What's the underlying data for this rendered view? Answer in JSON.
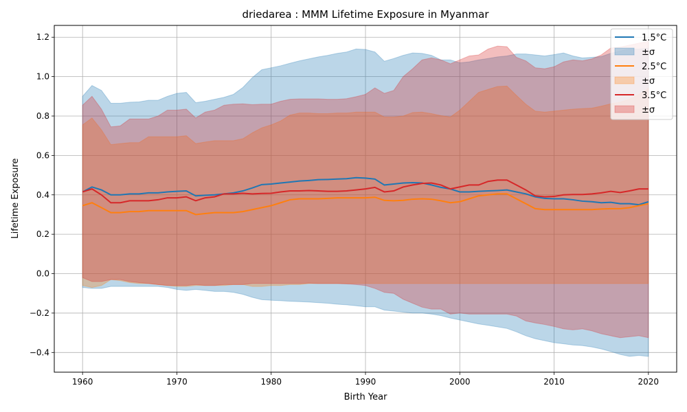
{
  "chart_data": {
    "type": "line",
    "title": "driedarea : MMM Lifetime Exposure in Myanmar",
    "xlabel": "Birth Year",
    "ylabel": "Lifetime Exposure",
    "xlim": [
      1957,
      2023
    ],
    "ylim": [
      -0.5,
      1.26
    ],
    "xticks": [
      1960,
      1970,
      1980,
      1990,
      2000,
      2010,
      2020
    ],
    "yticks": [
      -0.4,
      -0.2,
      0.0,
      0.2,
      0.4,
      0.6,
      0.8,
      1.0,
      1.2
    ],
    "xtick_labels": [
      "1960",
      "1970",
      "1980",
      "1990",
      "2000",
      "2010",
      "2020"
    ],
    "ytick_labels": [
      "−0.4",
      "−0.2",
      "0.0",
      "0.2",
      "0.4",
      "0.6",
      "0.8",
      "1.0",
      "1.2"
    ],
    "grid": true,
    "legend_position": "top-right",
    "x": [
      1960,
      1961,
      1962,
      1963,
      1964,
      1965,
      1966,
      1967,
      1968,
      1969,
      1970,
      1971,
      1972,
      1973,
      1974,
      1975,
      1976,
      1977,
      1978,
      1979,
      1980,
      1981,
      1982,
      1983,
      1984,
      1985,
      1986,
      1987,
      1988,
      1989,
      1990,
      1991,
      1992,
      1993,
      1994,
      1995,
      1996,
      1997,
      1998,
      1999,
      2000,
      2001,
      2002,
      2003,
      2004,
      2005,
      2006,
      2007,
      2008,
      2009,
      2010,
      2011,
      2012,
      2013,
      2014,
      2015,
      2016,
      2017,
      2018,
      2019,
      2020
    ],
    "series": [
      {
        "name": "1.5°C",
        "band_label": "±σ",
        "color": "#1f77b4",
        "mean": [
          0.415,
          0.44,
          0.425,
          0.4,
          0.4,
          0.405,
          0.405,
          0.41,
          0.41,
          0.415,
          0.418,
          0.42,
          0.395,
          0.398,
          0.4,
          0.405,
          0.41,
          0.42,
          0.435,
          0.452,
          0.455,
          0.46,
          0.465,
          0.47,
          0.473,
          0.477,
          0.478,
          0.48,
          0.482,
          0.487,
          0.485,
          0.48,
          0.45,
          0.455,
          0.46,
          0.462,
          0.46,
          0.45,
          0.438,
          0.43,
          0.415,
          0.415,
          0.418,
          0.42,
          0.422,
          0.425,
          0.415,
          0.405,
          0.39,
          0.382,
          0.38,
          0.38,
          0.375,
          0.368,
          0.365,
          0.36,
          0.362,
          0.355,
          0.355,
          0.35,
          0.365
        ],
        "upper": [
          0.9,
          0.955,
          0.93,
          0.865,
          0.865,
          0.87,
          0.872,
          0.88,
          0.88,
          0.9,
          0.915,
          0.92,
          0.868,
          0.875,
          0.885,
          0.895,
          0.91,
          0.945,
          0.995,
          1.035,
          1.045,
          1.055,
          1.068,
          1.08,
          1.09,
          1.1,
          1.108,
          1.118,
          1.125,
          1.14,
          1.138,
          1.125,
          1.078,
          1.092,
          1.108,
          1.12,
          1.118,
          1.108,
          1.085,
          1.085,
          1.07,
          1.075,
          1.085,
          1.092,
          1.1,
          1.105,
          1.115,
          1.115,
          1.11,
          1.105,
          1.112,
          1.12,
          1.105,
          1.095,
          1.098,
          1.102,
          1.118,
          1.13,
          1.14,
          1.14,
          1.145
        ],
        "lower": [
          -0.07,
          -0.075,
          -0.075,
          -0.065,
          -0.065,
          -0.065,
          -0.065,
          -0.065,
          -0.065,
          -0.07,
          -0.08,
          -0.085,
          -0.08,
          -0.085,
          -0.09,
          -0.09,
          -0.095,
          -0.105,
          -0.12,
          -0.132,
          -0.135,
          -0.137,
          -0.14,
          -0.142,
          -0.144,
          -0.147,
          -0.15,
          -0.155,
          -0.158,
          -0.163,
          -0.168,
          -0.168,
          -0.185,
          -0.19,
          -0.195,
          -0.2,
          -0.2,
          -0.205,
          -0.213,
          -0.225,
          -0.235,
          -0.245,
          -0.255,
          -0.262,
          -0.27,
          -0.278,
          -0.295,
          -0.315,
          -0.33,
          -0.34,
          -0.35,
          -0.356,
          -0.362,
          -0.365,
          -0.372,
          -0.382,
          -0.395,
          -0.41,
          -0.42,
          -0.415,
          -0.42
        ]
      },
      {
        "name": "2.5°C",
        "band_label": "±σ",
        "color": "#ff7f0e",
        "mean": [
          0.345,
          0.36,
          0.335,
          0.31,
          0.31,
          0.315,
          0.315,
          0.32,
          0.32,
          0.32,
          0.32,
          0.32,
          0.3,
          0.305,
          0.31,
          0.31,
          0.31,
          0.315,
          0.325,
          0.335,
          0.345,
          0.36,
          0.375,
          0.38,
          0.38,
          0.38,
          0.382,
          0.385,
          0.385,
          0.385,
          0.385,
          0.388,
          0.372,
          0.37,
          0.372,
          0.378,
          0.38,
          0.378,
          0.37,
          0.36,
          0.365,
          0.38,
          0.395,
          0.4,
          0.405,
          0.405,
          0.38,
          0.355,
          0.33,
          0.325,
          0.325,
          0.325,
          0.325,
          0.325,
          0.325,
          0.328,
          0.33,
          0.33,
          0.335,
          0.345,
          0.355
        ],
        "upper": [
          0.755,
          0.79,
          0.73,
          0.655,
          0.66,
          0.665,
          0.665,
          0.695,
          0.695,
          0.695,
          0.695,
          0.7,
          0.66,
          0.668,
          0.675,
          0.675,
          0.675,
          0.685,
          0.715,
          0.74,
          0.755,
          0.775,
          0.805,
          0.815,
          0.815,
          0.812,
          0.812,
          0.815,
          0.815,
          0.82,
          0.82,
          0.82,
          0.795,
          0.795,
          0.8,
          0.818,
          0.82,
          0.812,
          0.802,
          0.795,
          0.83,
          0.875,
          0.92,
          0.935,
          0.95,
          0.952,
          0.905,
          0.86,
          0.825,
          0.82,
          0.825,
          0.83,
          0.835,
          0.838,
          0.84,
          0.85,
          0.862,
          0.87,
          0.885,
          0.91,
          0.94
        ],
        "lower": [
          -0.06,
          -0.07,
          -0.06,
          -0.03,
          -0.035,
          -0.045,
          -0.05,
          -0.05,
          -0.055,
          -0.06,
          -0.065,
          -0.065,
          -0.06,
          -0.06,
          -0.06,
          -0.06,
          -0.055,
          -0.055,
          -0.065,
          -0.065,
          -0.06,
          -0.06,
          -0.055,
          -0.055,
          -0.05,
          -0.05,
          -0.05,
          -0.05,
          -0.05,
          -0.05,
          -0.05,
          -0.05,
          -0.05,
          -0.05,
          -0.05,
          -0.05,
          -0.05,
          -0.05,
          -0.05,
          -0.05,
          -0.05,
          -0.05,
          -0.05,
          -0.05,
          -0.05,
          -0.05,
          -0.05,
          -0.05,
          -0.05,
          -0.05,
          -0.05,
          -0.05,
          -0.05,
          -0.05,
          -0.05,
          -0.05,
          -0.05,
          -0.05,
          -0.05,
          -0.05,
          -0.05
        ]
      },
      {
        "name": "3.5°C",
        "band_label": "±σ",
        "color": "#d62728",
        "mean": [
          0.415,
          0.43,
          0.4,
          0.36,
          0.36,
          0.37,
          0.37,
          0.37,
          0.375,
          0.385,
          0.385,
          0.39,
          0.37,
          0.385,
          0.39,
          0.405,
          0.405,
          0.408,
          0.405,
          0.407,
          0.408,
          0.415,
          0.42,
          0.42,
          0.422,
          0.42,
          0.418,
          0.418,
          0.42,
          0.425,
          0.43,
          0.438,
          0.415,
          0.42,
          0.44,
          0.45,
          0.458,
          0.46,
          0.45,
          0.43,
          0.44,
          0.45,
          0.45,
          0.468,
          0.475,
          0.475,
          0.45,
          0.425,
          0.395,
          0.39,
          0.392,
          0.4,
          0.402,
          0.402,
          0.405,
          0.41,
          0.418,
          0.412,
          0.42,
          0.43,
          0.43
        ],
        "upper": [
          0.855,
          0.9,
          0.835,
          0.745,
          0.75,
          0.785,
          0.785,
          0.785,
          0.8,
          0.83,
          0.83,
          0.835,
          0.79,
          0.82,
          0.83,
          0.855,
          0.86,
          0.862,
          0.858,
          0.86,
          0.86,
          0.875,
          0.885,
          0.887,
          0.887,
          0.887,
          0.885,
          0.885,
          0.888,
          0.898,
          0.91,
          0.943,
          0.915,
          0.93,
          1.0,
          1.04,
          1.085,
          1.095,
          1.085,
          1.065,
          1.085,
          1.105,
          1.11,
          1.14,
          1.155,
          1.152,
          1.098,
          1.08,
          1.045,
          1.04,
          1.05,
          1.075,
          1.085,
          1.08,
          1.09,
          1.11,
          1.145,
          1.15,
          1.16,
          1.17,
          1.18
        ],
        "lower": [
          -0.02,
          -0.04,
          -0.04,
          -0.03,
          -0.03,
          -0.04,
          -0.045,
          -0.05,
          -0.055,
          -0.06,
          -0.06,
          -0.06,
          -0.055,
          -0.06,
          -0.06,
          -0.055,
          -0.055,
          -0.055,
          -0.05,
          -0.05,
          -0.05,
          -0.05,
          -0.05,
          -0.05,
          -0.048,
          -0.05,
          -0.05,
          -0.05,
          -0.052,
          -0.055,
          -0.06,
          -0.075,
          -0.095,
          -0.1,
          -0.13,
          -0.15,
          -0.17,
          -0.18,
          -0.18,
          -0.205,
          -0.2,
          -0.205,
          -0.205,
          -0.205,
          -0.205,
          -0.205,
          -0.215,
          -0.24,
          -0.25,
          -0.258,
          -0.268,
          -0.28,
          -0.285,
          -0.28,
          -0.29,
          -0.305,
          -0.315,
          -0.325,
          -0.32,
          -0.315,
          -0.325
        ]
      }
    ]
  }
}
